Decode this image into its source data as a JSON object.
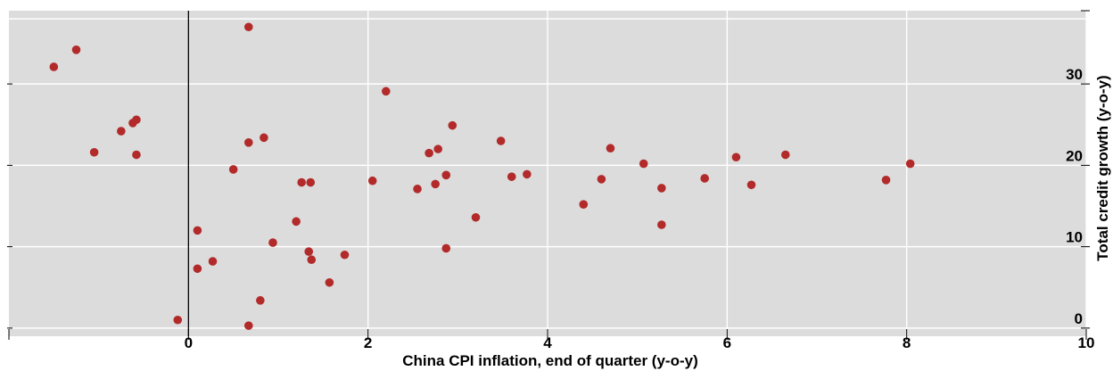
{
  "chart_data": {
    "type": "scatter",
    "title": "",
    "xlabel": "China CPI inflation, end of quarter (y-o-y)",
    "ylabel": "Total credit growth (y-o-y)",
    "xlim": [
      -2,
      10
    ],
    "ylim": [
      -1,
      39
    ],
    "x_ticks": [
      0,
      2,
      4,
      6,
      8,
      10
    ],
    "x_tick_labels": [
      "0",
      "2",
      "4",
      "6",
      "8",
      "10"
    ],
    "y_ticks": [
      0,
      10,
      20,
      30
    ],
    "y_tick_labels": [
      "0",
      "10",
      "20",
      "30"
    ],
    "y_axis_side": "right",
    "grid": true,
    "zero_line_x": 0,
    "colors": {
      "background": "#dcdcdc",
      "grid": "#ffffff",
      "marker": "#b22a2a"
    },
    "series": [
      {
        "points": [
          {
            "x": -1.5,
            "y": 32.1
          },
          {
            "x": -1.25,
            "y": 34.2
          },
          {
            "x": -1.05,
            "y": 21.6
          },
          {
            "x": -0.75,
            "y": 24.2
          },
          {
            "x": -0.62,
            "y": 25.2
          },
          {
            "x": -0.58,
            "y": 25.6
          },
          {
            "x": -0.58,
            "y": 21.3
          },
          {
            "x": -0.12,
            "y": 1.0
          },
          {
            "x": 0.1,
            "y": 12.0
          },
          {
            "x": 0.1,
            "y": 7.3
          },
          {
            "x": 0.27,
            "y": 8.2
          },
          {
            "x": 0.5,
            "y": 19.5
          },
          {
            "x": 0.67,
            "y": 37.0
          },
          {
            "x": 0.67,
            "y": 22.8
          },
          {
            "x": 0.67,
            "y": 0.3
          },
          {
            "x": 0.8,
            "y": 3.4
          },
          {
            "x": 0.84,
            "y": 23.4
          },
          {
            "x": 0.94,
            "y": 10.5
          },
          {
            "x": 1.2,
            "y": 13.1
          },
          {
            "x": 1.26,
            "y": 17.9
          },
          {
            "x": 1.34,
            "y": 9.4
          },
          {
            "x": 1.36,
            "y": 17.9
          },
          {
            "x": 1.37,
            "y": 8.4
          },
          {
            "x": 1.57,
            "y": 5.6
          },
          {
            "x": 1.74,
            "y": 9.0
          },
          {
            "x": 2.05,
            "y": 18.1
          },
          {
            "x": 2.2,
            "y": 29.1
          },
          {
            "x": 2.55,
            "y": 17.1
          },
          {
            "x": 2.68,
            "y": 21.5
          },
          {
            "x": 2.75,
            "y": 17.7
          },
          {
            "x": 2.78,
            "y": 22.0
          },
          {
            "x": 2.87,
            "y": 18.8
          },
          {
            "x": 2.87,
            "y": 9.8
          },
          {
            "x": 2.94,
            "y": 24.9
          },
          {
            "x": 3.2,
            "y": 13.6
          },
          {
            "x": 3.48,
            "y": 23.0
          },
          {
            "x": 3.6,
            "y": 18.6
          },
          {
            "x": 3.77,
            "y": 18.9
          },
          {
            "x": 4.4,
            "y": 15.2
          },
          {
            "x": 4.6,
            "y": 18.3
          },
          {
            "x": 4.7,
            "y": 22.1
          },
          {
            "x": 5.07,
            "y": 20.2
          },
          {
            "x": 5.27,
            "y": 17.2
          },
          {
            "x": 5.27,
            "y": 12.7
          },
          {
            "x": 5.75,
            "y": 18.4
          },
          {
            "x": 6.1,
            "y": 21.0
          },
          {
            "x": 6.27,
            "y": 17.6
          },
          {
            "x": 6.65,
            "y": 21.3
          },
          {
            "x": 7.77,
            "y": 18.2
          },
          {
            "x": 8.04,
            "y": 20.2
          }
        ]
      }
    ]
  }
}
